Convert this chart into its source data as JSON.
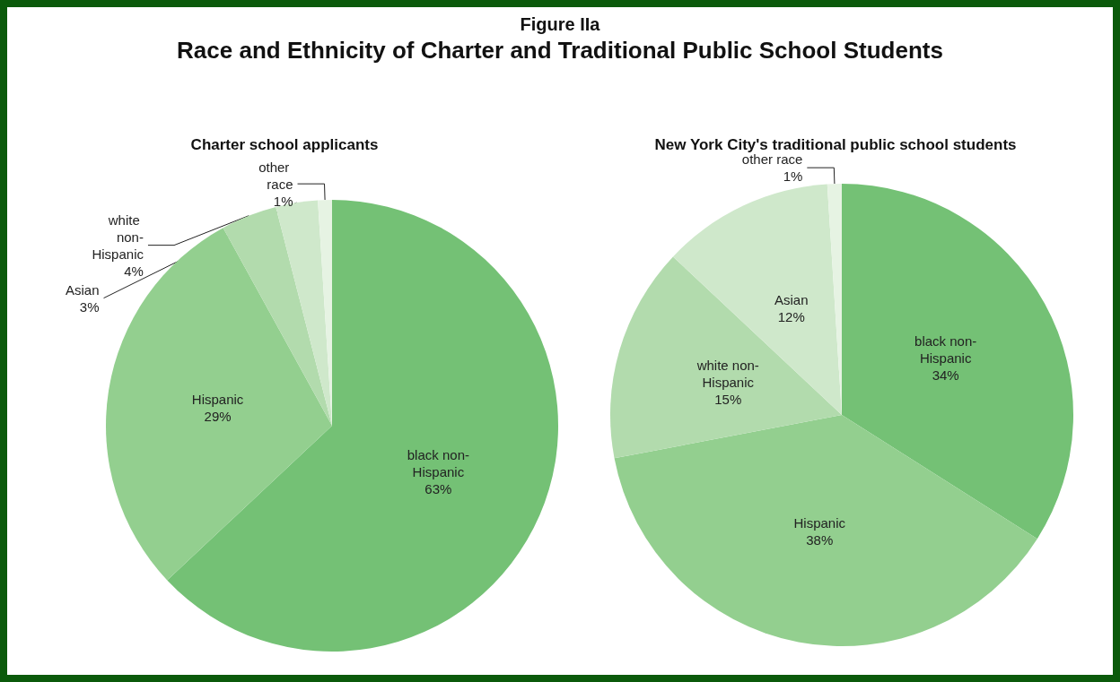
{
  "chart_data": [
    {
      "type": "other",
      "title": "Figure IIa",
      "subtitle": "Race and Ethnicity of Charter and Traditional Public School Students"
    },
    {
      "type": "pie",
      "title": "Charter school applicants",
      "categories": [
        "black non-Hispanic",
        "Hispanic",
        "white non-Hispanic",
        "Asian",
        "other race"
      ],
      "values": [
        63,
        29,
        4,
        3,
        1
      ],
      "value_labels": [
        "63%",
        "29%",
        "4%",
        "3%",
        "1%"
      ],
      "colors": [
        "#74c175",
        "#93cf8f",
        "#b2dbad",
        "#cfe8cb",
        "#e6f3e3"
      ],
      "legend": false
    },
    {
      "type": "pie",
      "title": "New York City's traditional public school students",
      "categories": [
        "black non-Hispanic",
        "Hispanic",
        "white non-Hispanic",
        "Asian",
        "other race"
      ],
      "values": [
        34,
        38,
        15,
        12,
        1
      ],
      "value_labels": [
        "34%",
        "38%",
        "15%",
        "12%",
        "1%"
      ],
      "colors": [
        "#74c175",
        "#93cf8f",
        "#b2dbad",
        "#cfe8cb",
        "#e6f3e3"
      ],
      "legend": false
    }
  ]
}
